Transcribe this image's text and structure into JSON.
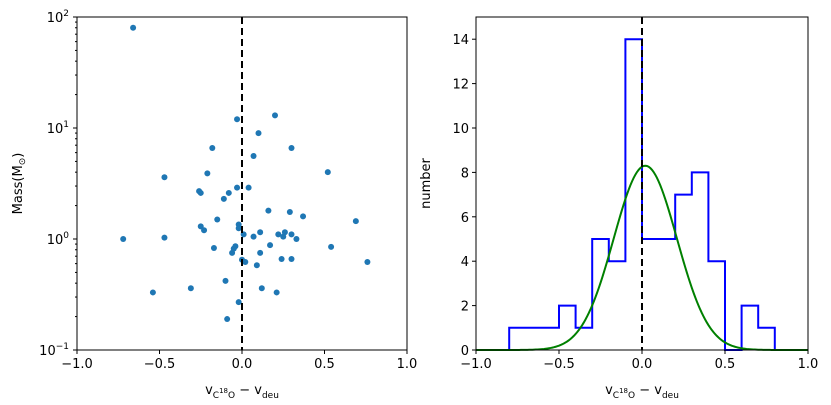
{
  "chart_data": [
    {
      "type": "scatter",
      "xlabel": "v_{C18O} − v_{deu}",
      "ylabel": "Mass(M⊙)",
      "xlim": [
        -1.0,
        1.0
      ],
      "ylim": [
        0.1,
        100
      ],
      "yscale": "log",
      "xticks": [
        "−1.0",
        "−0.5",
        "0.0",
        "0.5",
        "1.0"
      ],
      "yticks": [
        {
          "base": "10",
          "exp": "−1"
        },
        {
          "base": "10",
          "exp": "0"
        },
        {
          "base": "10",
          "exp": "1"
        },
        {
          "base": "10",
          "exp": "2"
        }
      ],
      "reference_line": {
        "x": 0.0,
        "style": "dashed",
        "color": "#000000"
      },
      "marker_color": "#1f77b4",
      "points": [
        {
          "x": -0.66,
          "y": 80
        },
        {
          "x": -0.72,
          "y": 1.0
        },
        {
          "x": -0.54,
          "y": 0.33
        },
        {
          "x": -0.47,
          "y": 3.6
        },
        {
          "x": -0.47,
          "y": 1.03
        },
        {
          "x": -0.31,
          "y": 0.36
        },
        {
          "x": -0.26,
          "y": 2.7
        },
        {
          "x": -0.25,
          "y": 2.6
        },
        {
          "x": -0.25,
          "y": 1.3
        },
        {
          "x": -0.23,
          "y": 1.2
        },
        {
          "x": -0.21,
          "y": 3.9
        },
        {
          "x": -0.18,
          "y": 6.6
        },
        {
          "x": -0.17,
          "y": 0.83
        },
        {
          "x": -0.15,
          "y": 1.5
        },
        {
          "x": -0.11,
          "y": 2.3
        },
        {
          "x": -0.1,
          "y": 0.42
        },
        {
          "x": -0.09,
          "y": 0.19
        },
        {
          "x": -0.08,
          "y": 2.6
        },
        {
          "x": -0.06,
          "y": 0.75
        },
        {
          "x": -0.05,
          "y": 0.82
        },
        {
          "x": -0.04,
          "y": 0.86
        },
        {
          "x": -0.03,
          "y": 12
        },
        {
          "x": -0.03,
          "y": 2.9
        },
        {
          "x": -0.02,
          "y": 1.35
        },
        {
          "x": -0.02,
          "y": 1.25
        },
        {
          "x": -0.02,
          "y": 0.27
        },
        {
          "x": 0.0,
          "y": 0.65
        },
        {
          "x": 0.01,
          "y": 1.1
        },
        {
          "x": 0.02,
          "y": 0.62
        },
        {
          "x": 0.04,
          "y": 2.9
        },
        {
          "x": 0.07,
          "y": 5.6
        },
        {
          "x": 0.07,
          "y": 1.05
        },
        {
          "x": 0.09,
          "y": 0.58
        },
        {
          "x": 0.1,
          "y": 9.0
        },
        {
          "x": 0.11,
          "y": 0.75
        },
        {
          "x": 0.11,
          "y": 1.15
        },
        {
          "x": 0.12,
          "y": 0.36
        },
        {
          "x": 0.16,
          "y": 1.8
        },
        {
          "x": 0.17,
          "y": 0.88
        },
        {
          "x": 0.2,
          "y": 13
        },
        {
          "x": 0.21,
          "y": 0.33
        },
        {
          "x": 0.22,
          "y": 1.1
        },
        {
          "x": 0.24,
          "y": 0.66
        },
        {
          "x": 0.25,
          "y": 1.05
        },
        {
          "x": 0.26,
          "y": 1.15
        },
        {
          "x": 0.29,
          "y": 1.75
        },
        {
          "x": 0.3,
          "y": 0.66
        },
        {
          "x": 0.3,
          "y": 6.6
        },
        {
          "x": 0.3,
          "y": 1.1
        },
        {
          "x": 0.33,
          "y": 1.0
        },
        {
          "x": 0.37,
          "y": 1.6
        },
        {
          "x": 0.52,
          "y": 4.0
        },
        {
          "x": 0.54,
          "y": 0.85
        },
        {
          "x": 0.69,
          "y": 1.45
        },
        {
          "x": 0.76,
          "y": 0.62
        }
      ]
    },
    {
      "type": "histogram",
      "xlabel": "v_{C18O} − v_{deu}",
      "ylabel": "number",
      "xlim": [
        -1.0,
        1.0
      ],
      "ylim": [
        0,
        15
      ],
      "xticks": [
        "−1.0",
        "−0.5",
        "0.0",
        "0.5",
        "1.0"
      ],
      "yticks": [
        "0",
        "2",
        "4",
        "6",
        "8",
        "10",
        "12",
        "14"
      ],
      "bins": [
        -0.8,
        -0.7,
        -0.6,
        -0.5,
        -0.4,
        -0.3,
        -0.2,
        -0.1,
        0.0,
        0.1,
        0.2,
        0.3,
        0.4,
        0.5,
        0.6,
        0.7,
        0.8
      ],
      "counts": [
        1,
        1,
        1,
        2,
        1,
        5,
        4,
        14,
        5,
        5,
        7,
        8,
        4,
        0,
        2,
        1
      ],
      "hist_color": "#0000ff",
      "fit": {
        "type": "gaussian",
        "amplitude": 8.3,
        "mean": 0.02,
        "sigma": 0.19,
        "color": "#008000"
      },
      "reference_line": {
        "x": 0.0,
        "style": "dashed",
        "color": "#000000"
      }
    }
  ]
}
